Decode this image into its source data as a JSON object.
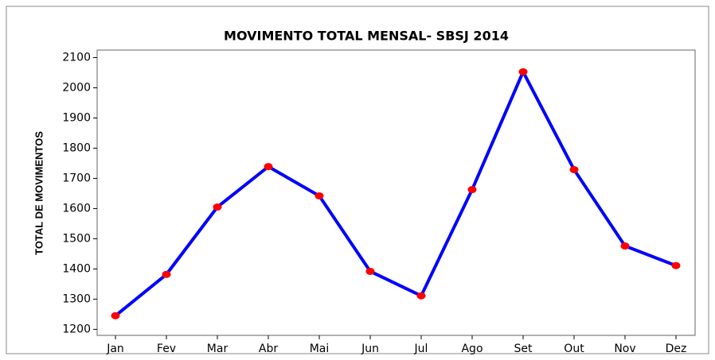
{
  "chart_data": {
    "type": "line",
    "title": "MOVIMENTO TOTAL MENSAL- SBSJ 2014",
    "y_label": "TOTAL DE MOVIMENTOS",
    "categories": [
      "Jan",
      "Fev",
      "Mar",
      "Abr",
      "Mai",
      "Jun",
      "Jul",
      "Ago",
      "Set",
      "Out",
      "Nov",
      "Dez"
    ],
    "series": [
      {
        "name": "TOTAL DE MOVIMENTOS",
        "color": "#0000ff",
        "marker_color": "#ff0000",
        "values": [
          1245,
          1382,
          1605,
          1739,
          1642,
          1392,
          1311,
          1663,
          2053,
          1729,
          1476,
          1411
        ]
      }
    ],
    "ylim": [
      1180,
      2125
    ],
    "yticks": [
      1200,
      1300,
      1400,
      1500,
      1600,
      1700,
      1800,
      1900,
      2000,
      2100
    ],
    "grid": false
  }
}
